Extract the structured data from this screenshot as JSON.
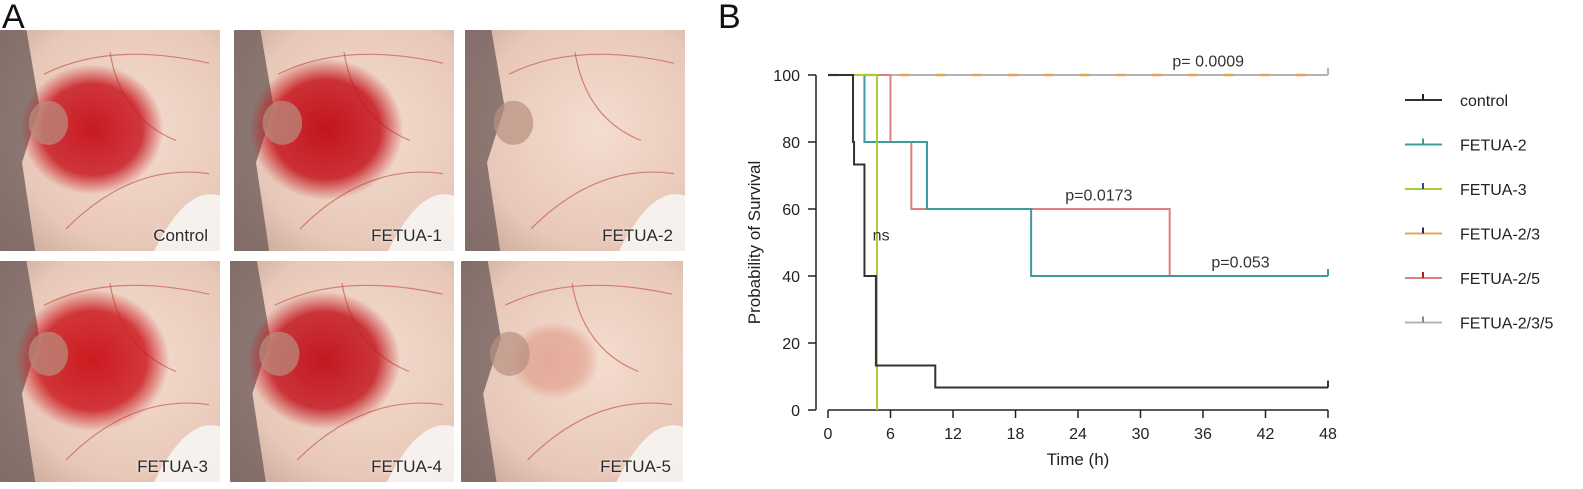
{
  "panels": {
    "a": "A",
    "b": "B"
  },
  "photos": [
    {
      "label": "Control",
      "stain": 0.85,
      "stain_color": "#c81a22"
    },
    {
      "label": "FETUA-1",
      "stain": 1.0,
      "stain_color": "#c4141c"
    },
    {
      "label": "FETUA-2",
      "stain": 0.0,
      "stain_color": "#d98a7c"
    },
    {
      "label": "FETUA-3",
      "stain": 1.0,
      "stain_color": "#cc1a20"
    },
    {
      "label": "FETUA-4",
      "stain": 0.95,
      "stain_color": "#c31820"
    },
    {
      "label": "FETUA-5",
      "stain": 0.15,
      "stain_color": "#d9806c"
    }
  ],
  "chart_data": {
    "type": "line",
    "step": true,
    "xlabel": "Time (h)",
    "ylabel": "Probability of Survival",
    "xlim": [
      0,
      48
    ],
    "ylim": [
      0,
      100
    ],
    "xticks": [
      0,
      6,
      12,
      18,
      24,
      30,
      36,
      42,
      48
    ],
    "yticks": [
      0,
      20,
      40,
      60,
      80,
      100
    ],
    "legend_position": "right",
    "series": [
      {
        "name": "control",
        "color": "#333333",
        "dash": false,
        "points": [
          [
            0,
            100
          ],
          [
            2.4,
            100
          ],
          [
            2.4,
            80
          ],
          [
            2.5,
            80
          ],
          [
            2.5,
            73.3
          ],
          [
            3.5,
            73.3
          ],
          [
            3.5,
            40
          ],
          [
            4.6,
            40
          ],
          [
            4.6,
            13.3
          ],
          [
            10.3,
            13.3
          ],
          [
            10.3,
            6.7
          ],
          [
            48,
            6.7
          ]
        ],
        "censor": [
          48
        ]
      },
      {
        "name": "FETUA-2",
        "color": "#3f9a9c",
        "dash": false,
        "points": [
          [
            0,
            100
          ],
          [
            3.5,
            100
          ],
          [
            3.5,
            80
          ],
          [
            9.5,
            80
          ],
          [
            9.5,
            60
          ],
          [
            19.5,
            60
          ],
          [
            19.5,
            40
          ],
          [
            48,
            40
          ]
        ],
        "censor": [
          48
        ]
      },
      {
        "name": "FETUA-3",
        "color": "#a8cc38",
        "dash": false,
        "points": [
          [
            0,
            100
          ],
          [
            4.7,
            100
          ],
          [
            4.7,
            0
          ]
        ],
        "censor": []
      },
      {
        "name": "FETUA-2/3",
        "color": "#e8a456",
        "dash": true,
        "points": [
          [
            0,
            100
          ],
          [
            48,
            100
          ]
        ],
        "censor": []
      },
      {
        "name": "FETUA-2/5",
        "color": "#dc7f7f",
        "dash": false,
        "points": [
          [
            0,
            100
          ],
          [
            6,
            100
          ],
          [
            6,
            80
          ],
          [
            8,
            80
          ],
          [
            8,
            60
          ],
          [
            32.8,
            60
          ],
          [
            32.8,
            40
          ],
          [
            48,
            40
          ]
        ],
        "censor": []
      },
      {
        "name": "FETUA-2/3/5",
        "color": "#b4b4b4",
        "dash": false,
        "points": [
          [
            0,
            100
          ],
          [
            48,
            100
          ]
        ],
        "censor": [
          48
        ]
      }
    ],
    "annotations": [
      {
        "text": "p= 0.0009",
        "x": 36.5,
        "y": 102,
        "color": "#333333"
      },
      {
        "text": "p=0.0173",
        "x": 26,
        "y": 62,
        "color": "#333333"
      },
      {
        "text": "p=0.053",
        "x": 39.6,
        "y": 42,
        "color": "#333333"
      },
      {
        "text": "ns",
        "x": 5.1,
        "y": 50,
        "color": "#a8cc38"
      }
    ]
  }
}
